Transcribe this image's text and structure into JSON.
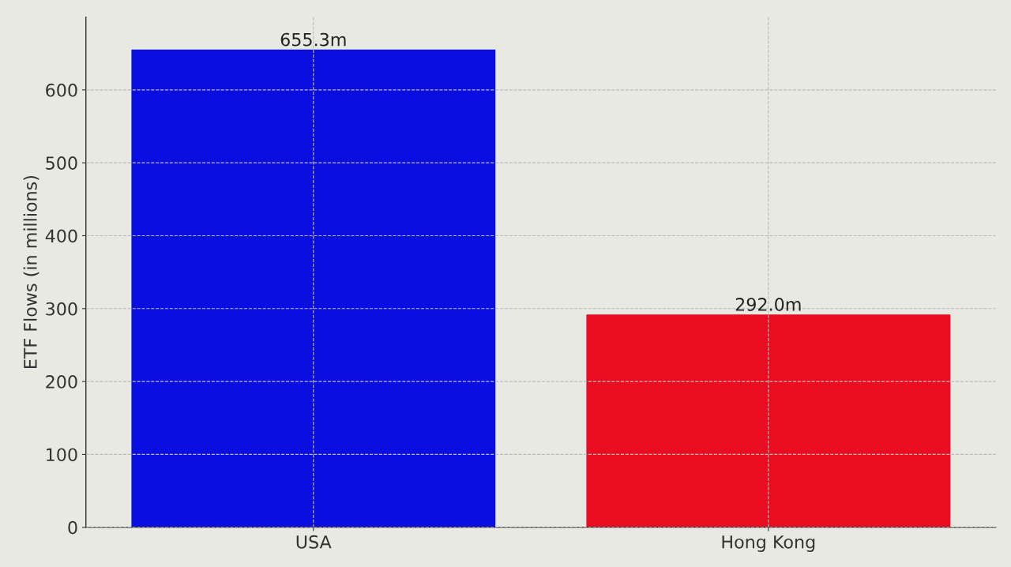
{
  "chart_data": {
    "type": "bar",
    "ylabel": "ETF Flows (in millions)",
    "categories": [
      "USA",
      "Hong Kong"
    ],
    "values": [
      655.3,
      292.0
    ],
    "colors": [
      "#0a0ee0",
      "#ea0d22"
    ],
    "value_labels": [
      "655.3m",
      "292.0m"
    ],
    "ylim": [
      0,
      700
    ],
    "yticks": [
      0,
      100,
      200,
      300,
      400,
      500,
      600
    ],
    "grid": true
  }
}
